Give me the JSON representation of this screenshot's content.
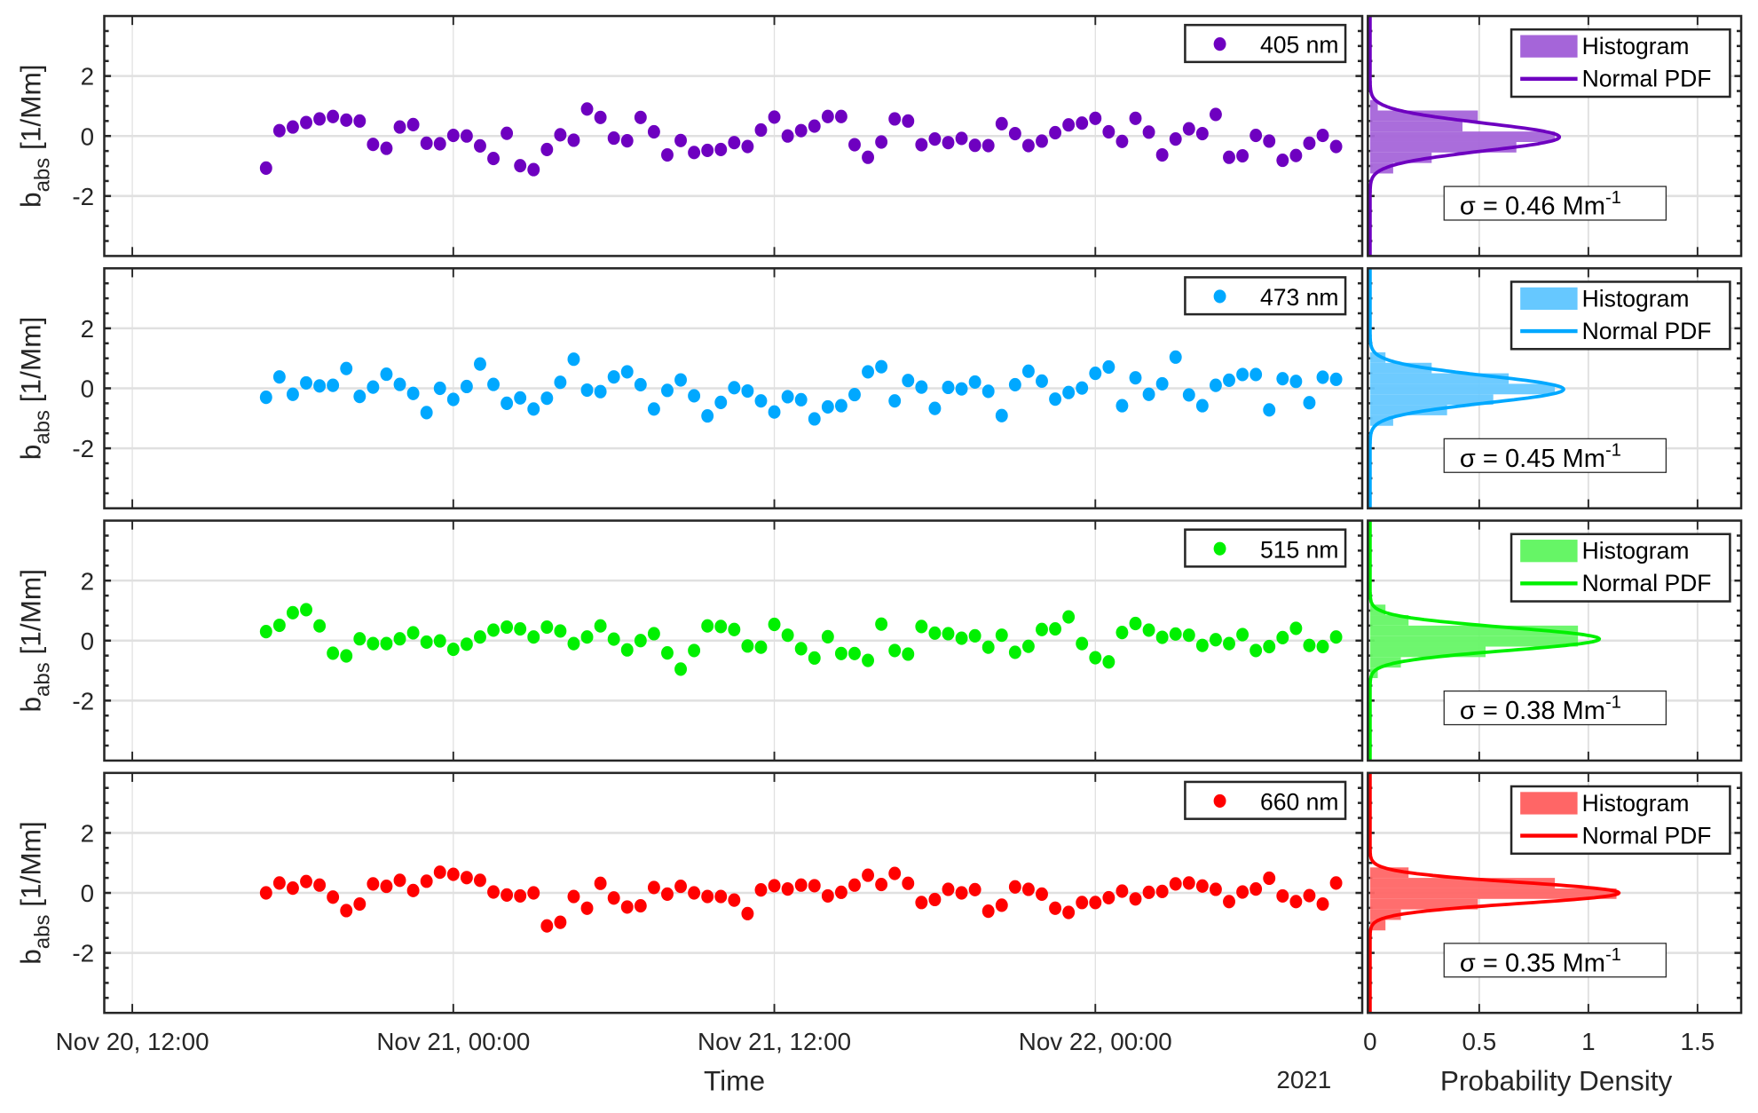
{
  "chart_data": [
    {
      "type": "scatter",
      "title": "",
      "series_name": "405 nm",
      "color": "#6e00c0",
      "hist_color": "#a565d9",
      "x_start": "Nov 20, 17:00",
      "x_start_hours_after_nov20_1200": 5,
      "x_step_hours": 0.5,
      "y": [
        -1.07,
        0.18,
        0.3,
        0.45,
        0.57,
        0.65,
        0.53,
        0.5,
        -0.28,
        -0.41,
        0.3,
        0.38,
        -0.24,
        -0.26,
        0.02,
        0,
        -0.33,
        -0.75,
        0.09,
        -0.99,
        -1.12,
        -0.45,
        0.04,
        -0.14,
        0.9,
        0.62,
        -0.07,
        -0.16,
        0.62,
        0.14,
        -0.63,
        -0.15,
        -0.55,
        -0.48,
        -0.45,
        -0.22,
        -0.35,
        0.2,
        0.63,
        0,
        0.18,
        0.33,
        0.65,
        0.65,
        -0.29,
        -0.71,
        -0.2,
        0.57,
        0.5,
        -0.29,
        -0.1,
        -0.22,
        -0.08,
        -0.31,
        -0.32,
        0.41,
        0.08,
        -0.32,
        -0.17,
        0.11,
        0.37,
        0.43,
        0.59,
        0.14,
        -0.18,
        0.59,
        0.13,
        -0.63,
        -0.1,
        0.24,
        0.08,
        0.72,
        -0.71,
        -0.66,
        0.02,
        -0.17,
        -0.81,
        -0.65,
        -0.24,
        0.02,
        -0.35
      ],
      "sigma": 0.46,
      "sigma_label": "σ = 0.46 Mm",
      "sigma_sup": "-1"
    },
    {
      "type": "scatter",
      "series_name": "473 nm",
      "color": "#00a8ff",
      "hist_color": "#66c8ff",
      "x_start": "Nov 20, 17:00",
      "x_start_hours_after_nov20_1200": 5,
      "x_step_hours": 0.5,
      "y": [
        -0.3,
        0.38,
        -0.2,
        0.18,
        0.08,
        0.1,
        0.66,
        -0.27,
        0.04,
        0.47,
        0.13,
        -0.17,
        -0.81,
        0,
        -0.37,
        0.06,
        0.81,
        0.13,
        -0.5,
        -0.32,
        -0.69,
        -0.33,
        0.2,
        0.97,
        -0.06,
        -0.11,
        0.38,
        0.55,
        0.12,
        -0.69,
        -0.07,
        0.28,
        -0.25,
        -0.92,
        -0.47,
        0.02,
        -0.09,
        -0.42,
        -0.79,
        -0.28,
        -0.38,
        -1.02,
        -0.62,
        -0.58,
        -0.21,
        0.55,
        0.72,
        -0.42,
        0.26,
        0.04,
        -0.67,
        0.03,
        -0.02,
        0.21,
        -0.1,
        -0.91,
        0.12,
        0.57,
        0.24,
        -0.36,
        -0.14,
        0.01,
        0.5,
        0.71,
        -0.58,
        0.35,
        -0.2,
        0.15,
        1.04,
        -0.22,
        -0.58,
        0.1,
        0.27,
        0.46,
        0.46,
        -0.72,
        0.32,
        0.23,
        -0.48,
        0.37,
        0.3
      ],
      "sigma": 0.45,
      "sigma_label": "σ = 0.45 Mm",
      "sigma_sup": "-1"
    },
    {
      "type": "scatter",
      "series_name": "515 nm",
      "color": "#00f000",
      "hist_color": "#66f566",
      "x_start": "Nov 20, 17:00",
      "x_start_hours_after_nov20_1200": 5,
      "x_step_hours": 0.5,
      "y": [
        0.3,
        0.51,
        0.93,
        1.03,
        0.49,
        -0.42,
        -0.51,
        0.06,
        -0.1,
        -0.1,
        0.06,
        0.26,
        -0.05,
        -0.01,
        -0.29,
        -0.12,
        0.12,
        0.35,
        0.45,
        0.39,
        0.12,
        0.45,
        0.32,
        -0.1,
        0.12,
        0.49,
        0.05,
        -0.31,
        0,
        0.23,
        -0.41,
        -0.95,
        -0.33,
        0.49,
        0.47,
        0.37,
        -0.18,
        -0.22,
        0.54,
        0.18,
        -0.27,
        -0.58,
        0.13,
        -0.43,
        -0.43,
        -0.66,
        0.55,
        -0.33,
        -0.45,
        0.47,
        0.25,
        0.23,
        0.08,
        0.16,
        -0.22,
        0.18,
        -0.39,
        -0.19,
        0.37,
        0.39,
        0.79,
        -0.1,
        -0.57,
        -0.71,
        0.27,
        0.57,
        0.35,
        0.11,
        0.22,
        0.18,
        -0.16,
        0.03,
        -0.1,
        0.2,
        -0.33,
        -0.2,
        0.1,
        0.41,
        -0.16,
        -0.2,
        0.12
      ],
      "sigma": 0.38,
      "sigma_label": "σ = 0.38 Mm",
      "sigma_sup": "-1"
    },
    {
      "type": "scatter",
      "series_name": "660 nm",
      "color": "#ff0000",
      "hist_color": "#ff6666",
      "x_start": "Nov 20, 17:00",
      "x_start_hours_after_nov20_1200": 5,
      "x_step_hours": 0.5,
      "y": [
        0,
        0.33,
        0.16,
        0.38,
        0.26,
        -0.14,
        -0.59,
        -0.37,
        0.3,
        0.22,
        0.42,
        0.08,
        0.39,
        0.69,
        0.62,
        0.51,
        0.42,
        0.03,
        -0.07,
        -0.1,
        0,
        -1.1,
        -0.98,
        -0.12,
        -0.51,
        0.32,
        -0.17,
        -0.47,
        -0.43,
        0.18,
        -0.04,
        0.22,
        0,
        -0.12,
        -0.12,
        -0.24,
        -0.69,
        0.1,
        0.24,
        0.13,
        0.26,
        0.24,
        -0.1,
        0.02,
        0.26,
        0.59,
        0.28,
        0.65,
        0.32,
        -0.32,
        -0.22,
        0.12,
        0,
        0.11,
        -0.61,
        -0.41,
        0.2,
        0.12,
        -0.04,
        -0.51,
        -0.65,
        -0.32,
        -0.32,
        -0.16,
        0.06,
        -0.2,
        0.02,
        0.05,
        0.3,
        0.33,
        0.23,
        0.12,
        -0.29,
        0.03,
        0.13,
        0.49,
        -0.1,
        -0.29,
        -0.09,
        -0.37,
        0.33
      ],
      "sigma": 0.35,
      "sigma_label": "σ = 0.35 Mm",
      "sigma_sup": "-1"
    }
  ],
  "axes": {
    "ylim": [
      -4,
      4
    ],
    "y_ticks": [
      "2",
      "0",
      "-2"
    ],
    "y_tick_values": [
      2,
      0,
      -2
    ],
    "ylabel_main": "b",
    "ylabel_sub": "abs",
    "ylabel_unit": " [1/Mm]",
    "x_ticks": [
      "Nov 20, 12:00",
      "Nov 21, 00:00",
      "Nov 21, 12:00",
      "Nov 22, 00:00"
    ],
    "x_tick_hours": [
      0,
      12,
      24,
      36
    ],
    "xlim_hours": [
      -1.05,
      46
    ],
    "xlabel": "Time",
    "year_label": "2021",
    "pdf_xlim": [
      0,
      1.7
    ],
    "pdf_ticks": [
      "0",
      "0.5",
      "1",
      "1.5"
    ],
    "pdf_tick_values": [
      0,
      0.5,
      1,
      1.5
    ],
    "pdf_xlabel": "Probability Density",
    "hist_bin_width": 0.35,
    "hist_bin_start": -1.25,
    "grid": true
  },
  "legend": {
    "histogram": "Histogram",
    "normal_pdf": "Normal PDF",
    "placement": "top-right"
  }
}
